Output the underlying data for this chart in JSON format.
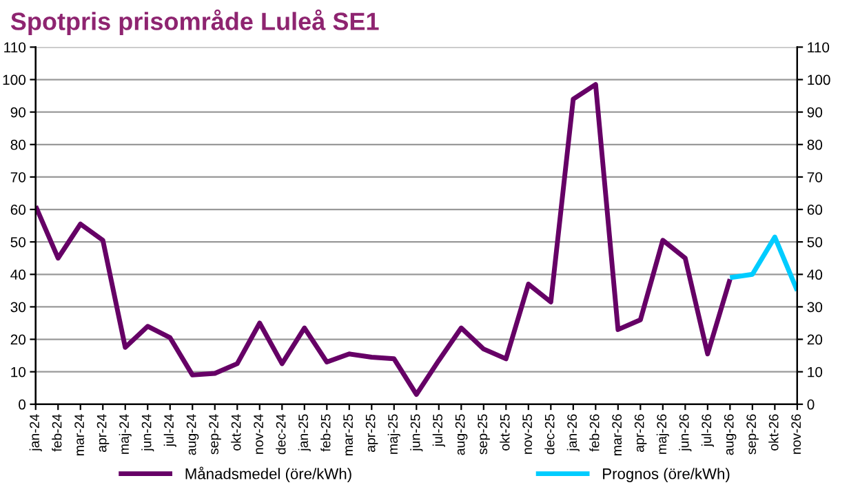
{
  "chart_data": {
    "type": "line",
    "title": "Spotpris prisområde Luleå SE1",
    "categories": [
      "jan-24",
      "feb-24",
      "mar-24",
      "apr-24",
      "maj-24",
      "jun-24",
      "jul-24",
      "aug-24",
      "sep-24",
      "okt-24",
      "nov-24",
      "dec-24",
      "jan-25",
      "feb-25",
      "mar-25",
      "apr-25",
      "maj-25",
      "jun-25",
      "jul-25",
      "aug-25",
      "sep-25",
      "okt-25",
      "nov-25",
      "dec-25",
      "jan-26",
      "feb-26",
      "mar-26",
      "apr-26",
      "maj-26",
      "jun-26",
      "jul-26",
      "aug-26",
      "sep-26",
      "okt-26",
      "nov-26"
    ],
    "series": [
      {
        "name": "Månadsmedel (öre/kWh)",
        "color": "#660066",
        "values": [
          61,
          45,
          55.5,
          50.5,
          17.5,
          24,
          20.5,
          9,
          9.5,
          12.5,
          25,
          12.5,
          23.5,
          13,
          15.5,
          14.5,
          14,
          3,
          13.5,
          23.5,
          17,
          14,
          37,
          31.5,
          94,
          98.5,
          23,
          26,
          50.5,
          45,
          15.5,
          38.5,
          null,
          null,
          null
        ]
      },
      {
        "name": "Prognos (öre/kWh)",
        "color": "#00ccff",
        "values": [
          null,
          null,
          null,
          null,
          null,
          null,
          null,
          null,
          null,
          null,
          null,
          null,
          null,
          null,
          null,
          null,
          null,
          null,
          null,
          null,
          null,
          null,
          null,
          null,
          null,
          null,
          null,
          null,
          null,
          null,
          null,
          39,
          40,
          51.5,
          35
        ]
      }
    ],
    "ylim": [
      0,
      110
    ],
    "yticks": [
      0,
      10,
      20,
      30,
      40,
      50,
      60,
      70,
      80,
      90,
      100,
      110
    ],
    "y2lim": [
      0,
      110
    ],
    "y2ticks": [
      0,
      10,
      20,
      30,
      40,
      50,
      60,
      70,
      80,
      90,
      100,
      110
    ],
    "grid": "y",
    "legend": "bottom",
    "marker": "none",
    "line_style": "solid"
  }
}
